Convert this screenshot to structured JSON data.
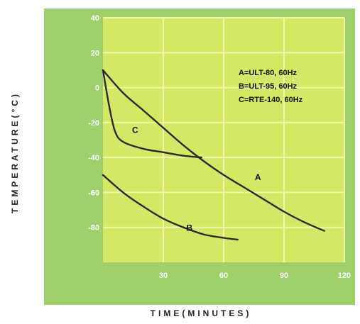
{
  "chart_data": {
    "type": "line",
    "title": "",
    "xlabel": "TIME(MINUTES)",
    "ylabel": "TEMPERATURE(°C)",
    "xlim": [
      0,
      120
    ],
    "ylim": [
      -100,
      40
    ],
    "x_ticks": [
      30,
      60,
      90,
      120
    ],
    "y_ticks": [
      40,
      20,
      0,
      -20,
      -40,
      -60,
      -80
    ],
    "grid": true,
    "legend_position": "top-right",
    "legend": [
      "A=ULT-80, 60Hz",
      "B=ULT-95, 60Hz",
      "C=RTE-140, 60Hz"
    ],
    "colors": {
      "outer_background": "#9fcf6b",
      "plot_background": "#d3e865",
      "grid": "#f3f4a6",
      "curve": "#2a2a1e",
      "tick_text": "#ffffff",
      "axis_title": "#222222"
    },
    "series": [
      {
        "name": "A",
        "label_at": [
          77,
          -53
        ],
        "x": [
          0,
          10,
          20,
          30,
          40,
          50,
          60,
          70,
          80,
          90,
          100,
          110
        ],
        "y": [
          10,
          -3,
          -13,
          -23,
          -33,
          -42,
          -50,
          -57,
          -64,
          -71,
          -77,
          -82
        ]
      },
      {
        "name": "B",
        "label_at": [
          43,
          -82
        ],
        "x": [
          0,
          10,
          20,
          30,
          40,
          50,
          60,
          67
        ],
        "y": [
          -50,
          -60,
          -68,
          -75,
          -80,
          -84,
          -86,
          -87
        ]
      },
      {
        "name": "C",
        "label_at": [
          16,
          -26
        ],
        "x": [
          0,
          3,
          6,
          10,
          20,
          30,
          40,
          49
        ],
        "y": [
          10,
          -10,
          -25,
          -31,
          -35,
          -37,
          -39,
          -40
        ]
      }
    ]
  }
}
